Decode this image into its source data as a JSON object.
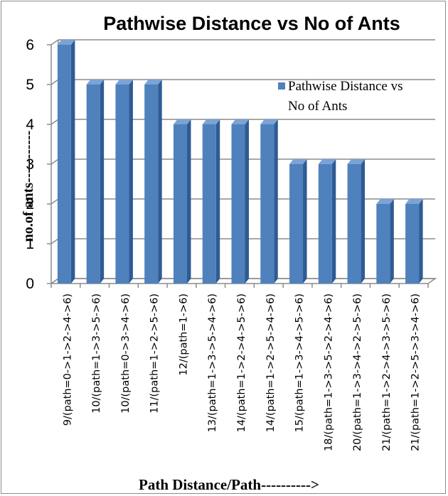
{
  "chart_data": {
    "type": "bar",
    "title": "Pathwise Distance vs No of Ants",
    "xlabel": "Path Distance/Path---------->",
    "ylabel": "no.of ants-----------",
    "categories": [
      "9/(path=0->1->2->4->6)",
      "10/(path=1->3->5->6)",
      "10/(path=0->3->4->6)",
      "11/(path=1->2->5->6)",
      "12/(path=1->6)",
      "13/(path=1->3->5->4->6)",
      "14/(path=1->2->4->5->6)",
      "14/(path=1->2->5->4->6)",
      "15/(path=1->3->4->5->6)",
      "18/(path=1->3->5->2->4->6)",
      "20/(path=1->3->4->2->5->6)",
      "21/(path=1->2->4->3->5->6)",
      "21/(path=1->2->5->3->4->6)"
    ],
    "series": [
      {
        "name": "Pathwise Distance vs No of Ants",
        "values": [
          6,
          5,
          5,
          5,
          4,
          4,
          4,
          4,
          3,
          3,
          3,
          2,
          2
        ]
      }
    ],
    "ylim": [
      0,
      6
    ],
    "yticks": [
      0,
      1,
      2,
      3,
      4,
      5,
      6
    ],
    "grid": true,
    "legend": "right",
    "style": "3d-column",
    "colors": {
      "bar_front": "#4f81bd",
      "bar_side": "#2e5b94",
      "bar_top": "#7aa3d6",
      "grid": "#8c8c8c"
    }
  }
}
